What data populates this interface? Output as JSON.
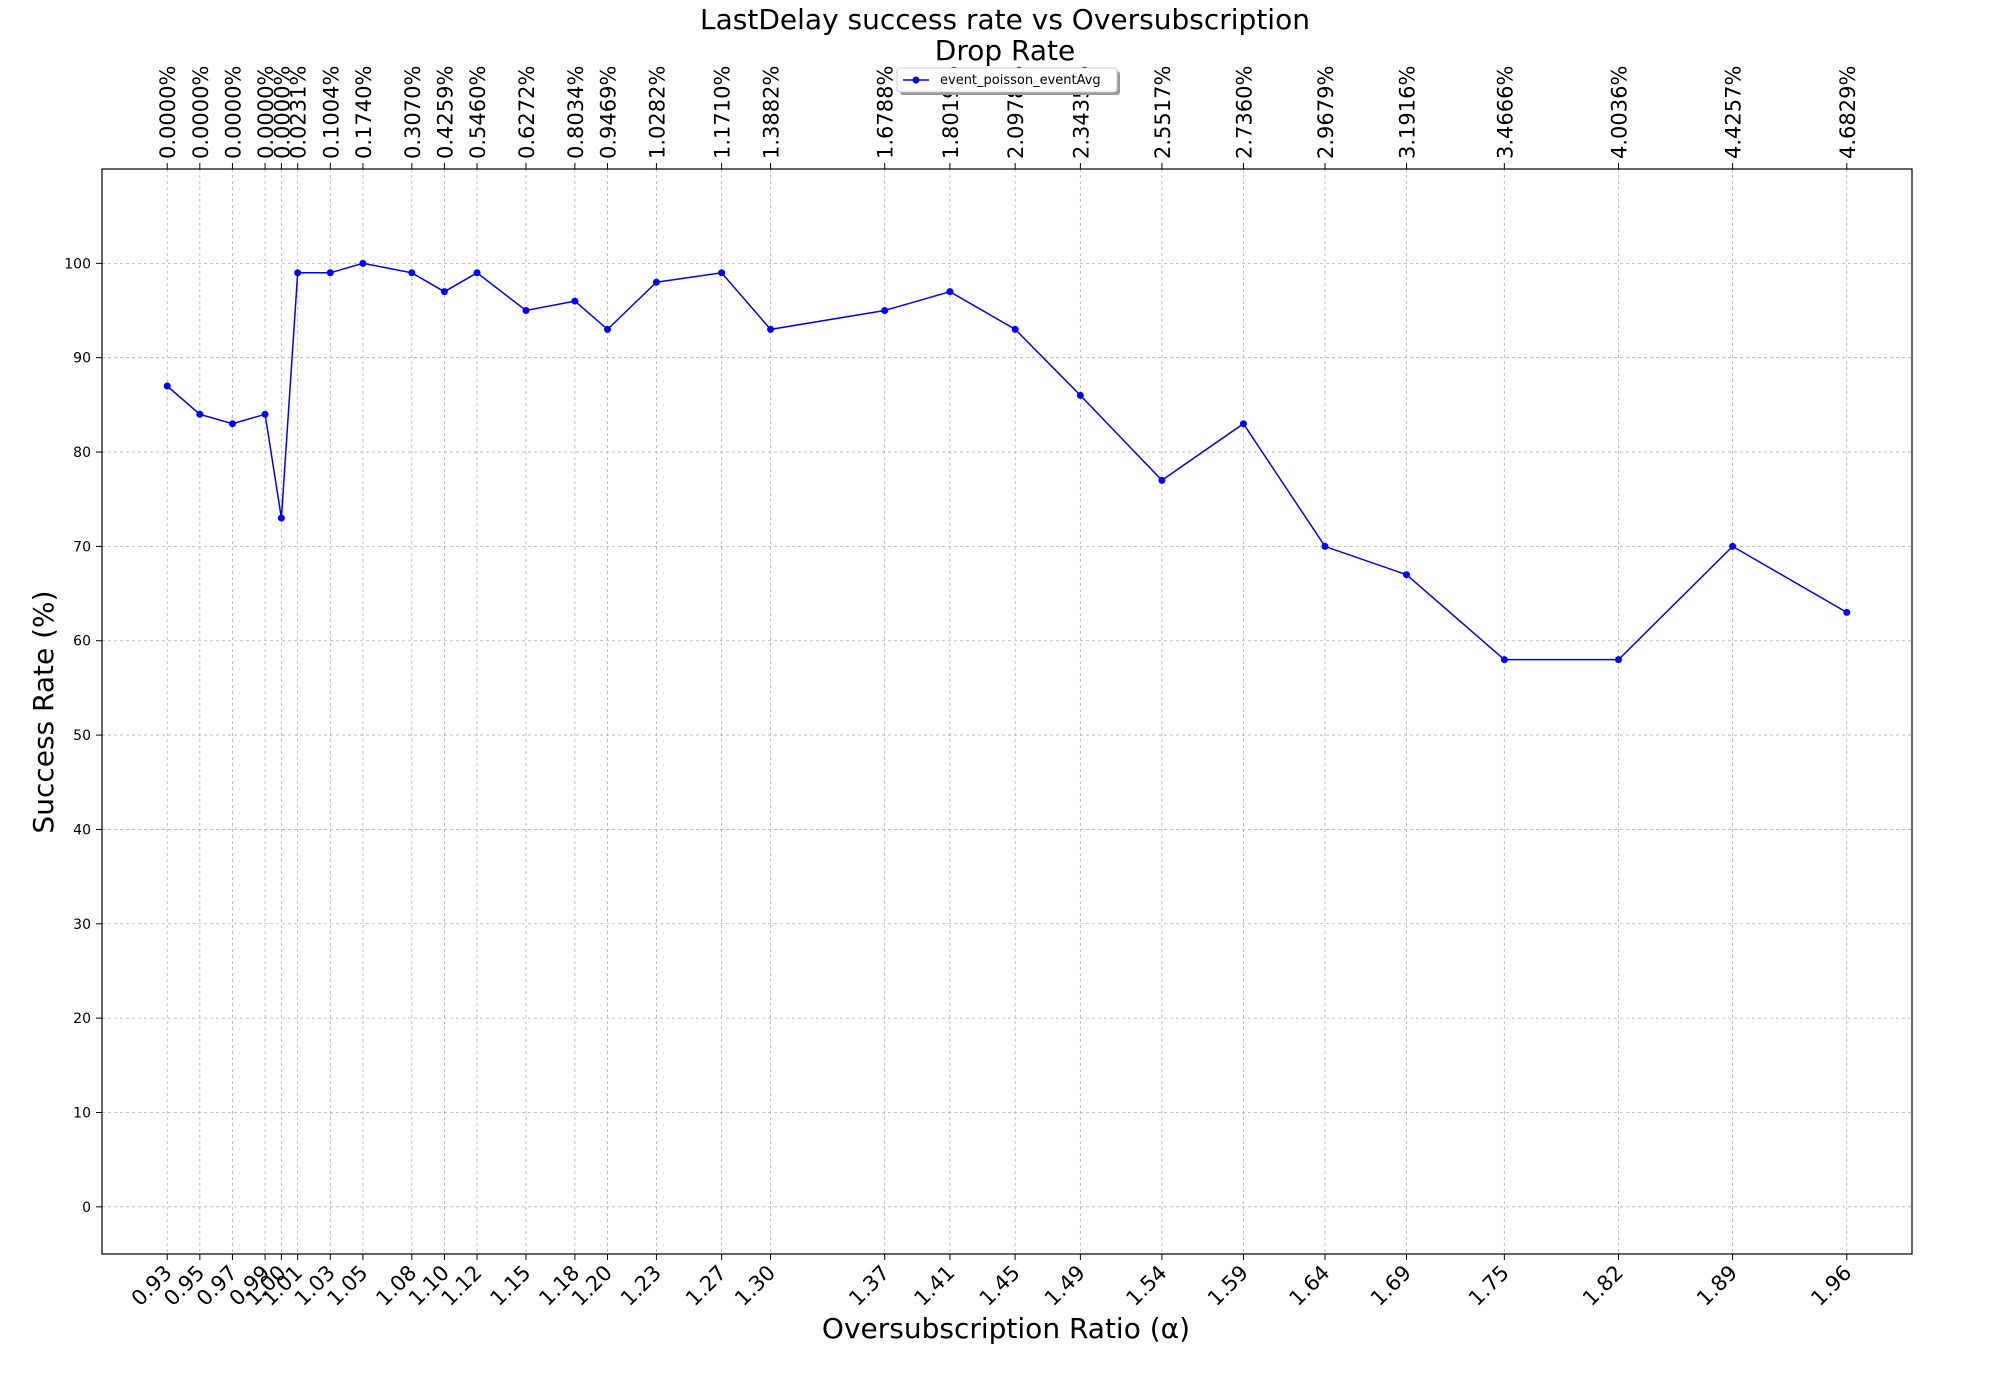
{
  "chart_data": {
    "type": "line",
    "title_line1": "LastDelay success rate vs Oversubscription",
    "title_line2": "Drop Rate",
    "xlabel": "Oversubscription Ratio (α)",
    "ylabel": "Success Rate (%)",
    "ylim": [
      -5,
      110
    ],
    "yticks": [
      0,
      10,
      20,
      30,
      40,
      50,
      60,
      70,
      80,
      90,
      100
    ],
    "grid": true,
    "legend_position": "top-center",
    "x": [
      0.93,
      0.95,
      0.97,
      0.99,
      1.0,
      1.01,
      1.03,
      1.05,
      1.08,
      1.1,
      1.12,
      1.15,
      1.18,
      1.2,
      1.23,
      1.27,
      1.3,
      1.37,
      1.41,
      1.45,
      1.49,
      1.54,
      1.59,
      1.64,
      1.69,
      1.75,
      1.82,
      1.89,
      1.96
    ],
    "x_tick_labels": [
      "0.93",
      "0.95",
      "0.97",
      "0.99",
      "1.00",
      "1.01",
      "1.03",
      "1.05",
      "1.08",
      "1.10",
      "1.12",
      "1.15",
      "1.18",
      "1.20",
      "1.23",
      "1.27",
      "1.30",
      "1.37",
      "1.41",
      "1.45",
      "1.49",
      "1.54",
      "1.59",
      "1.64",
      "1.69",
      "1.75",
      "1.82",
      "1.89",
      "1.96"
    ],
    "drop_rate_labels": [
      "0.0000%",
      "0.0000%",
      "0.0000%",
      "0.0000%",
      "0.0000%",
      "0.0231%",
      "0.1004%",
      "0.1740%",
      "0.3070%",
      "0.4259%",
      "0.5460%",
      "0.6272%",
      "0.8034%",
      "0.9469%",
      "1.0282%",
      "1.1710%",
      "1.3882%",
      "1.6788%",
      "1.8019%",
      "2.0978%",
      "2.3435%",
      "2.5517%",
      "2.7360%",
      "2.9679%",
      "3.1916%",
      "3.4666%",
      "4.0036%",
      "4.4257%",
      "4.6829%"
    ],
    "series": [
      {
        "name": "event_poisson_eventAvg",
        "color": "#0000ff",
        "values": [
          87,
          84,
          83,
          84,
          73,
          99,
          99,
          100,
          99,
          97,
          99,
          95,
          96,
          93,
          98,
          99,
          93,
          95,
          97,
          93,
          86,
          77,
          83,
          70,
          67,
          58,
          58,
          70,
          63
        ]
      }
    ]
  }
}
